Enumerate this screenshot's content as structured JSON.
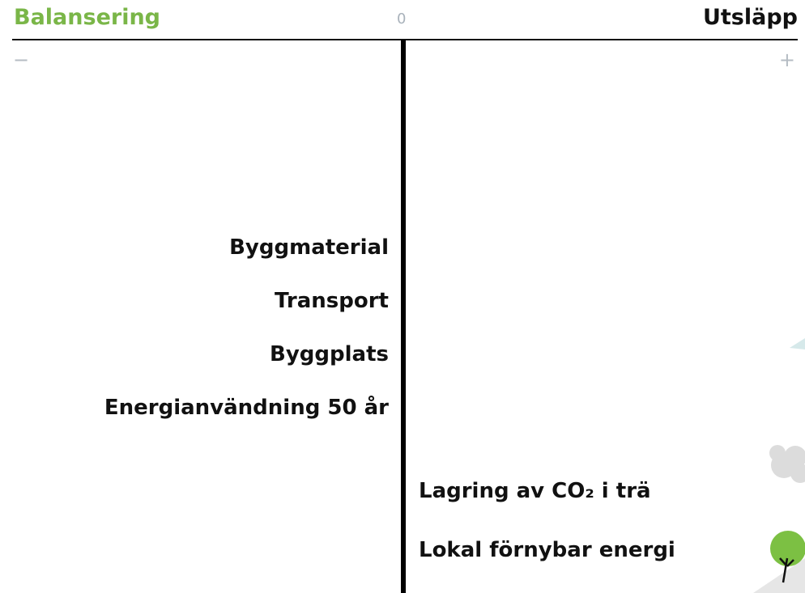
{
  "header": {
    "left_title": "Balansering",
    "center_label": "0",
    "right_title": "Utsläpp",
    "minus_sign": "−",
    "plus_sign": "+"
  },
  "left_items": [
    "Byggmaterial",
    "Transport",
    "Byggplats",
    "Energianvändning 50 år"
  ],
  "right_items": [
    "Lagring av CO₂ i trä",
    "Lokal förnybar energi"
  ]
}
